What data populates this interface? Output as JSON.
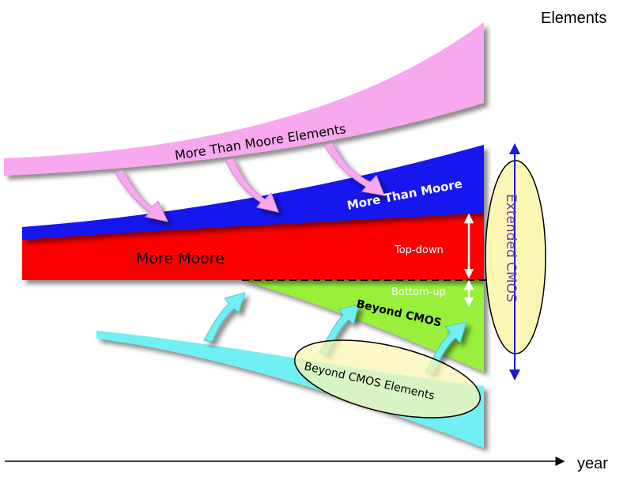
{
  "labels": {
    "y_axis": "Elements",
    "x_axis": "year",
    "more_than_moore_elements": "More Than Moore Elements",
    "more_than_moore": "More Than Moore",
    "more_moore": "More Moore",
    "top_down": "Top-down",
    "bottom_up": "Bottom-up",
    "beyond_cmos": "Beyond CMOS",
    "beyond_cmos_elements": "Beyond CMOS Elements",
    "extended_cmos": "Extended CMOS"
  },
  "colors": {
    "pink": "#f7a8ee",
    "blue": "#1515ee",
    "red": "#fb0000",
    "green": "#98f03a",
    "cyan": "#6ff0f2",
    "ellipse_fill": "#fbf6b4",
    "axis": "#000000",
    "cmos_text": "#6a3fb5"
  }
}
